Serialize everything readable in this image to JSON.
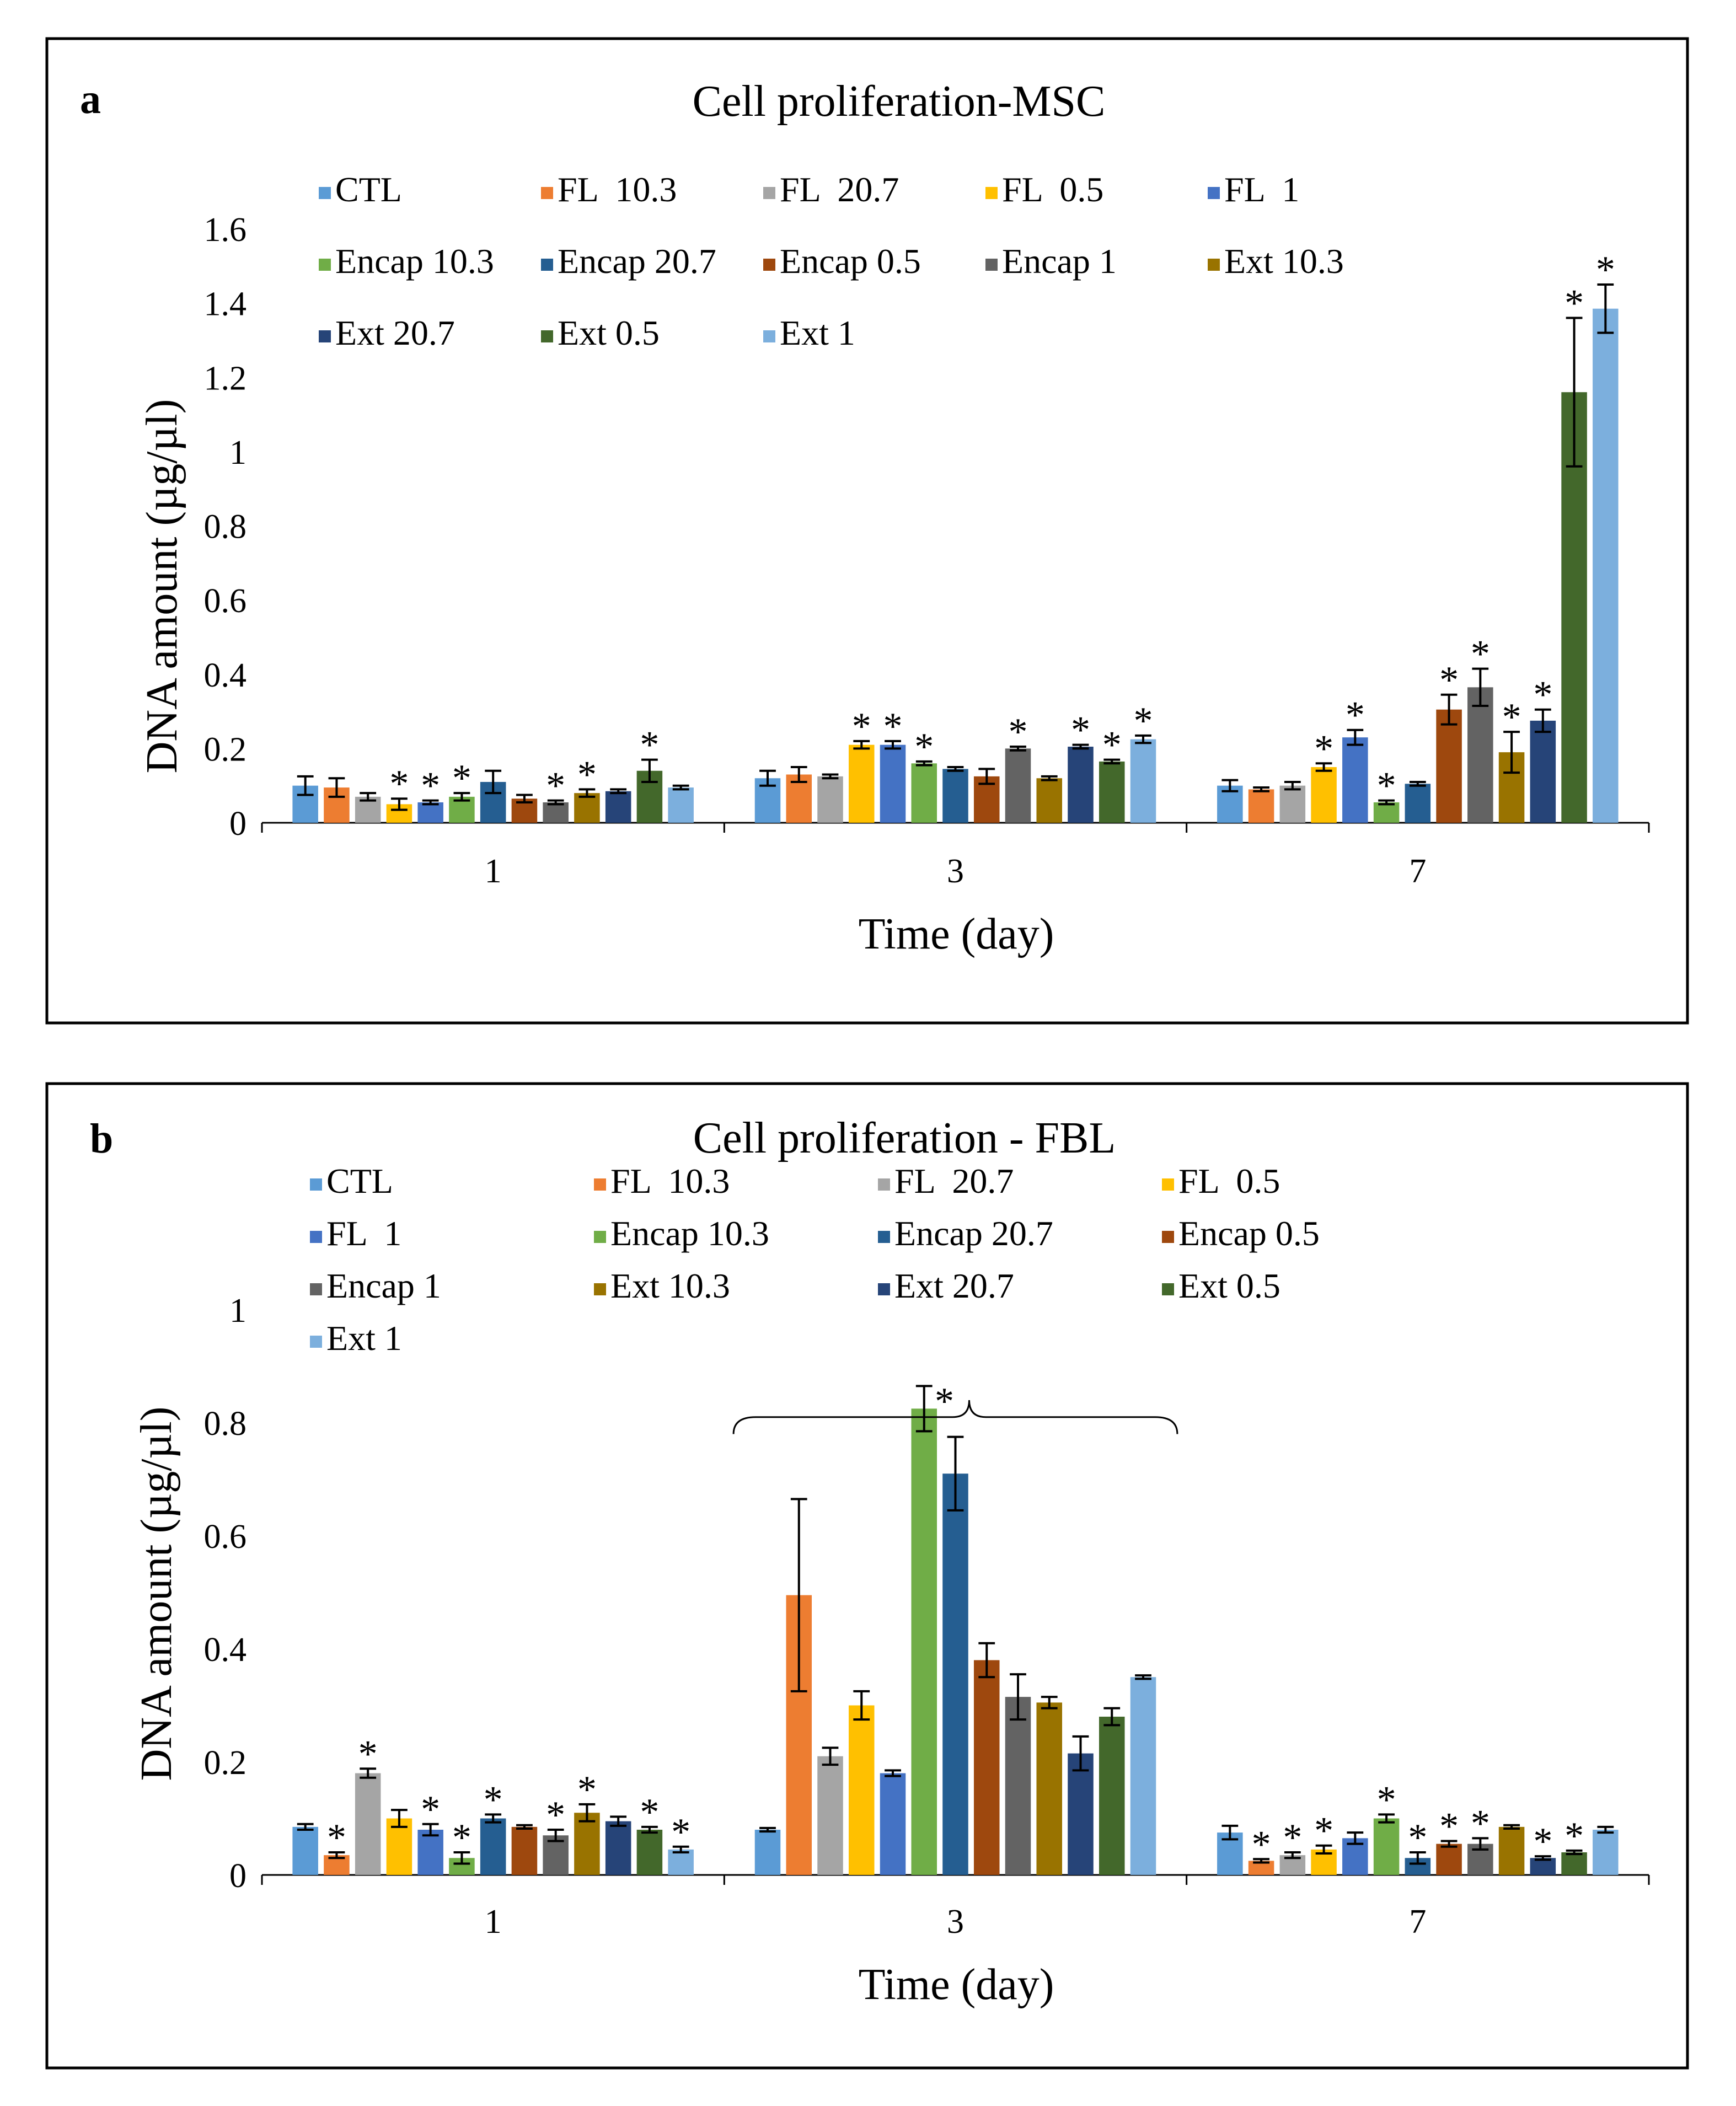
{
  "series_names": [
    "CTL",
    "FL  10.3",
    "FL  20.7",
    "FL  0.5",
    "FL  1",
    "Encap 10.3",
    "Encap 20.7",
    "Encap 0.5",
    "Encap 1",
    "Ext 10.3",
    "Ext 20.7",
    "Ext 0.5",
    "Ext 1"
  ],
  "series_colors": [
    "#5B9BD5",
    "#ED7D31",
    "#A5A5A5",
    "#FFC000",
    "#4472C4",
    "#70AD47",
    "#255E91",
    "#9E480E",
    "#636363",
    "#997300",
    "#264478",
    "#43682B",
    "#7CAFDD"
  ],
  "chart_data": [
    {
      "type": "bar",
      "panel_label": "a",
      "title": "Cell proliferation-MSC",
      "xlabel": "Time (day)",
      "ylabel": "DNA amount (µg/µl)",
      "categories": [
        "1",
        "3",
        "7"
      ],
      "ylim": [
        0,
        1.6
      ],
      "yticks": [
        "0",
        "0.2",
        "0.4",
        "0.6",
        "0.8",
        "1",
        "1.2",
        "1.4",
        "1.6"
      ],
      "legend_position": "top",
      "significance_marker": "*",
      "series": [
        {
          "name": "CTL",
          "values": [
            0.1,
            0.12,
            0.1
          ],
          "errors": [
            0.025,
            0.02,
            0.015
          ],
          "sig": [
            false,
            false,
            false
          ]
        },
        {
          "name": "FL  10.3",
          "values": [
            0.095,
            0.13,
            0.09
          ],
          "errors": [
            0.025,
            0.02,
            0.005
          ],
          "sig": [
            false,
            false,
            false
          ]
        },
        {
          "name": "FL  20.7",
          "values": [
            0.07,
            0.125,
            0.1
          ],
          "errors": [
            0.01,
            0.005,
            0.01
          ],
          "sig": [
            false,
            false,
            false
          ]
        },
        {
          "name": "FL  0.5",
          "values": [
            0.05,
            0.21,
            0.15
          ],
          "errors": [
            0.015,
            0.01,
            0.01
          ],
          "sig": [
            true,
            true,
            true
          ]
        },
        {
          "name": "FL  1",
          "values": [
            0.055,
            0.21,
            0.23
          ],
          "errors": [
            0.005,
            0.01,
            0.02
          ],
          "sig": [
            true,
            true,
            true
          ]
        },
        {
          "name": "Encap 10.3",
          "values": [
            0.07,
            0.16,
            0.055
          ],
          "errors": [
            0.01,
            0.005,
            0.005
          ],
          "sig": [
            true,
            true,
            true
          ]
        },
        {
          "name": "Encap 20.7",
          "values": [
            0.11,
            0.145,
            0.105
          ],
          "errors": [
            0.03,
            0.005,
            0.005
          ],
          "sig": [
            false,
            false,
            false
          ]
        },
        {
          "name": "Encap 0.5",
          "values": [
            0.065,
            0.125,
            0.305
          ],
          "errors": [
            0.01,
            0.02,
            0.04
          ],
          "sig": [
            false,
            false,
            true
          ]
        },
        {
          "name": "Encap 1",
          "values": [
            0.055,
            0.2,
            0.365
          ],
          "errors": [
            0.005,
            0.005,
            0.05
          ],
          "sig": [
            true,
            true,
            true
          ]
        },
        {
          "name": "Ext 10.3",
          "values": [
            0.08,
            0.12,
            0.19
          ],
          "errors": [
            0.01,
            0.005,
            0.055
          ],
          "sig": [
            true,
            false,
            true
          ]
        },
        {
          "name": "Ext 20.7",
          "values": [
            0.085,
            0.205,
            0.275
          ],
          "errors": [
            0.005,
            0.005,
            0.03
          ],
          "sig": [
            false,
            true,
            true
          ]
        },
        {
          "name": "Ext 0.5",
          "values": [
            0.14,
            0.165,
            1.16
          ],
          "errors": [
            0.03,
            0.005,
            0.2
          ],
          "sig": [
            true,
            true,
            true
          ]
        },
        {
          "name": "Ext 1",
          "values": [
            0.095,
            0.225,
            1.385
          ],
          "errors": [
            0.005,
            0.01,
            0.065
          ],
          "sig": [
            false,
            true,
            true
          ]
        }
      ]
    },
    {
      "type": "bar",
      "panel_label": "b",
      "title": "Cell proliferation - FBL",
      "xlabel": "Time (day)",
      "ylabel": "DNA amount (µg/µl)",
      "categories": [
        "1",
        "3",
        "7"
      ],
      "ylim": [
        0,
        1
      ],
      "yticks": [
        "0",
        "0.2",
        "0.4",
        "0.6",
        "0.8",
        "1"
      ],
      "legend_position": "top",
      "significance_marker": "*",
      "group_annotation": {
        "category": "3",
        "text": "*",
        "style": "brace spanning all bars"
      },
      "series": [
        {
          "name": "CTL",
          "values": [
            0.085,
            0.08,
            0.075
          ],
          "errors": [
            0.005,
            0.003,
            0.012
          ],
          "sig": [
            false,
            false,
            false
          ]
        },
        {
          "name": "FL  10.3",
          "values": [
            0.035,
            0.495,
            0.025
          ],
          "errors": [
            0.005,
            0.17,
            0.003
          ],
          "sig": [
            true,
            false,
            true
          ]
        },
        {
          "name": "FL  20.7",
          "values": [
            0.18,
            0.21,
            0.035
          ],
          "errors": [
            0.008,
            0.015,
            0.005
          ],
          "sig": [
            true,
            false,
            true
          ]
        },
        {
          "name": "FL  0.5",
          "values": [
            0.1,
            0.3,
            0.045
          ],
          "errors": [
            0.015,
            0.025,
            0.007
          ],
          "sig": [
            false,
            false,
            true
          ]
        },
        {
          "name": "FL  1",
          "values": [
            0.08,
            0.18,
            0.065
          ],
          "errors": [
            0.01,
            0.005,
            0.01
          ],
          "sig": [
            true,
            false,
            false
          ]
        },
        {
          "name": "Encap 10.3",
          "values": [
            0.03,
            0.825,
            0.1
          ],
          "errors": [
            0.01,
            0.04,
            0.007
          ],
          "sig": [
            true,
            false,
            true
          ]
        },
        {
          "name": "Encap 20.7",
          "values": [
            0.1,
            0.71,
            0.03
          ],
          "errors": [
            0.007,
            0.065,
            0.01
          ],
          "sig": [
            true,
            false,
            true
          ]
        },
        {
          "name": "Encap 0.5",
          "values": [
            0.085,
            0.38,
            0.055
          ],
          "errors": [
            0.003,
            0.03,
            0.005
          ],
          "sig": [
            false,
            false,
            true
          ]
        },
        {
          "name": "Encap 1",
          "values": [
            0.07,
            0.315,
            0.055
          ],
          "errors": [
            0.01,
            0.04,
            0.01
          ],
          "sig": [
            true,
            false,
            true
          ]
        },
        {
          "name": "Ext 10.3",
          "values": [
            0.11,
            0.305,
            0.085
          ],
          "errors": [
            0.015,
            0.01,
            0.003
          ],
          "sig": [
            true,
            false,
            false
          ]
        },
        {
          "name": "Ext 20.7",
          "values": [
            0.095,
            0.215,
            0.03
          ],
          "errors": [
            0.008,
            0.03,
            0.003
          ],
          "sig": [
            false,
            false,
            true
          ]
        },
        {
          "name": "Ext 0.5",
          "values": [
            0.08,
            0.28,
            0.04
          ],
          "errors": [
            0.005,
            0.015,
            0.003
          ],
          "sig": [
            true,
            false,
            true
          ]
        },
        {
          "name": "Ext 1",
          "values": [
            0.045,
            0.35,
            0.08
          ],
          "errors": [
            0.005,
            0.003,
            0.005
          ],
          "sig": [
            true,
            false,
            false
          ]
        }
      ]
    }
  ]
}
